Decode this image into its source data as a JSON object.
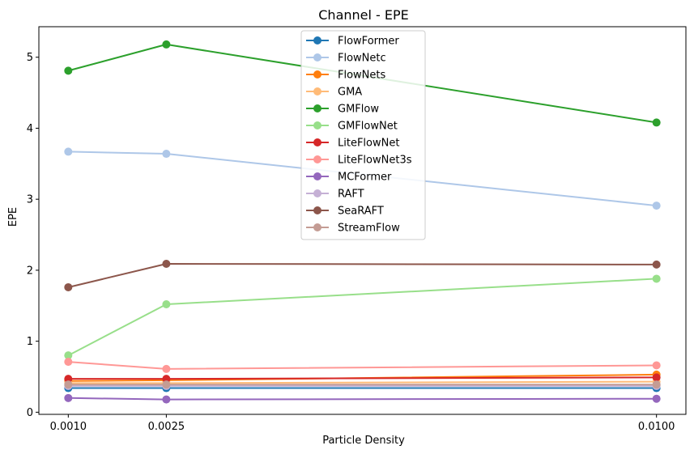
{
  "chart_data": {
    "type": "line",
    "title": "Channel - EPE",
    "xlabel": "Particle Density",
    "ylabel": "EPE",
    "x": [
      0.001,
      0.0025,
      0.01
    ],
    "x_tick_labels": [
      "0.0010",
      "0.0025",
      "0.0100"
    ],
    "xlim": [
      0.00055,
      0.01045
    ],
    "ylim": [
      -0.03,
      5.43
    ],
    "y_ticks": [
      0,
      1,
      2,
      3,
      4,
      5
    ],
    "grid": false,
    "legend_position": "top-center",
    "series": [
      {
        "name": "FlowFormer",
        "color": "#1f77b4",
        "values": [
          0.34,
          0.34,
          0.34
        ]
      },
      {
        "name": "FlowNetc",
        "color": "#aec7e8",
        "values": [
          3.67,
          3.64,
          2.91
        ]
      },
      {
        "name": "FlowNets",
        "color": "#ff7f0e",
        "values": [
          0.44,
          0.45,
          0.53
        ]
      },
      {
        "name": "GMA",
        "color": "#ffbb78",
        "values": [
          0.41,
          0.41,
          0.43
        ]
      },
      {
        "name": "GMFlow",
        "color": "#2ca02c",
        "values": [
          4.81,
          5.18,
          4.08
        ]
      },
      {
        "name": "GMFlowNet",
        "color": "#98df8a",
        "values": [
          0.8,
          1.52,
          1.88
        ]
      },
      {
        "name": "LiteFlowNet",
        "color": "#d62728",
        "values": [
          0.47,
          0.47,
          0.49
        ]
      },
      {
        "name": "LiteFlowNet3s",
        "color": "#ff9896",
        "values": [
          0.71,
          0.61,
          0.66
        ]
      },
      {
        "name": "MCFormer",
        "color": "#9467bd",
        "values": [
          0.2,
          0.18,
          0.19
        ]
      },
      {
        "name": "RAFT",
        "color": "#c5b0d5",
        "values": [
          0.37,
          0.37,
          0.37
        ]
      },
      {
        "name": "SeaRAFT",
        "color": "#8c564b",
        "values": [
          1.76,
          2.09,
          2.08
        ]
      },
      {
        "name": "StreamFlow",
        "color": "#c49c94",
        "values": [
          0.39,
          0.39,
          0.39
        ]
      }
    ]
  }
}
